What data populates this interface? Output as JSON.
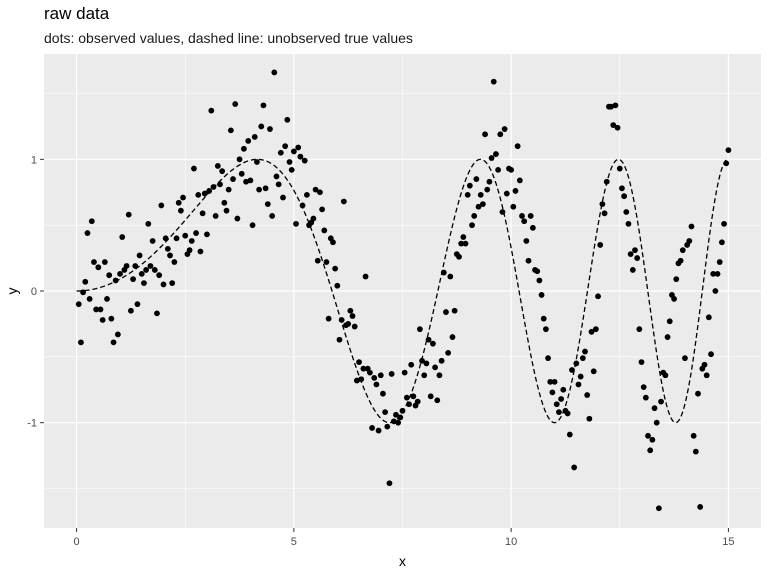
{
  "chart_data": {
    "type": "scatter",
    "title": "raw data",
    "subtitle": "dots: observed values, dashed line: unobserved true values",
    "xlabel": "x",
    "ylabel": "y",
    "xlim": [
      -0.75,
      15.75
    ],
    "ylim": [
      -1.8,
      1.8
    ],
    "x_ticks": [
      "0",
      "5",
      "10",
      "15"
    ],
    "x_tick_values": [
      0,
      5,
      10,
      15
    ],
    "y_ticks": [
      "-1",
      "0",
      "1"
    ],
    "y_tick_values": [
      -1,
      0,
      1
    ],
    "grid": true,
    "legend": "none",
    "colors": {
      "panel": "#ebebeb",
      "grid": "#ffffff",
      "points": "#000000",
      "line": "#000000"
    },
    "true_curve": {
      "style": "dashed",
      "x_range": [
        0,
        15
      ],
      "expression": "sin(x^2 / 11)"
    },
    "points": [
      [
        0.05,
        -0.1
      ],
      [
        0.1,
        -0.39
      ],
      [
        0.15,
        -0.01
      ],
      [
        0.2,
        0.07
      ],
      [
        0.25,
        0.44
      ],
      [
        0.3,
        -0.06
      ],
      [
        0.35,
        0.53
      ],
      [
        0.4,
        0.22
      ],
      [
        0.45,
        -0.14
      ],
      [
        0.5,
        0.18
      ],
      [
        0.55,
        -0.14
      ],
      [
        0.6,
        -0.22
      ],
      [
        0.65,
        0.22
      ],
      [
        0.7,
        -0.06
      ],
      [
        0.75,
        0.12
      ],
      [
        0.8,
        -0.21
      ],
      [
        0.85,
        -0.39
      ],
      [
        0.9,
        0.08
      ],
      [
        0.95,
        -0.33
      ],
      [
        1.0,
        0.13
      ],
      [
        1.05,
        0.41
      ],
      [
        1.1,
        0.16
      ],
      [
        1.15,
        0.19
      ],
      [
        1.2,
        0.58
      ],
      [
        1.25,
        -0.15
      ],
      [
        1.3,
        0.09
      ],
      [
        1.35,
        0.19
      ],
      [
        1.4,
        -0.1
      ],
      [
        1.45,
        0.27
      ],
      [
        1.5,
        0.13
      ],
      [
        1.55,
        0.06
      ],
      [
        1.6,
        0.16
      ],
      [
        1.65,
        0.51
      ],
      [
        1.7,
        0.19
      ],
      [
        1.75,
        0.38
      ],
      [
        1.8,
        0.16
      ],
      [
        1.85,
        -0.17
      ],
      [
        1.9,
        0.12
      ],
      [
        1.95,
        0.65
      ],
      [
        2.0,
        0.05
      ],
      [
        2.05,
        0.4
      ],
      [
        2.1,
        0.32
      ],
      [
        2.15,
        0.27
      ],
      [
        2.2,
        0.06
      ],
      [
        2.25,
        0.22
      ],
      [
        2.3,
        0.4
      ],
      [
        2.35,
        0.67
      ],
      [
        2.4,
        0.61
      ],
      [
        2.45,
        0.71
      ],
      [
        2.5,
        0.42
      ],
      [
        2.55,
        0.28
      ],
      [
        2.6,
        0.31
      ],
      [
        2.65,
        0.38
      ],
      [
        2.7,
        0.93
      ],
      [
        2.75,
        0.44
      ],
      [
        2.8,
        0.73
      ],
      [
        2.85,
        0.3
      ],
      [
        2.9,
        0.59
      ],
      [
        2.95,
        0.74
      ],
      [
        3.0,
        0.43
      ],
      [
        3.05,
        0.76
      ],
      [
        3.1,
        1.37
      ],
      [
        3.15,
        0.79
      ],
      [
        3.2,
        0.57
      ],
      [
        3.25,
        0.95
      ],
      [
        3.3,
        0.81
      ],
      [
        3.35,
        0.91
      ],
      [
        3.4,
        0.67
      ],
      [
        3.45,
        0.61
      ],
      [
        3.5,
        0.77
      ],
      [
        3.55,
        1.22
      ],
      [
        3.6,
        0.85
      ],
      [
        3.65,
        1.42
      ],
      [
        3.7,
        0.55
      ],
      [
        3.75,
        1.0
      ],
      [
        3.8,
        0.89
      ],
      [
        3.85,
        1.08
      ],
      [
        3.9,
        0.83
      ],
      [
        3.95,
        1.14
      ],
      [
        4.0,
        0.84
      ],
      [
        4.05,
        0.5
      ],
      [
        4.1,
        1.17
      ],
      [
        4.15,
        0.98
      ],
      [
        4.2,
        0.77
      ],
      [
        4.25,
        1.25
      ],
      [
        4.3,
        1.41
      ],
      [
        4.35,
        0.78
      ],
      [
        4.4,
        0.66
      ],
      [
        4.45,
        1.23
      ],
      [
        4.5,
        0.57
      ],
      [
        4.55,
        1.66
      ],
      [
        4.6,
        0.87
      ],
      [
        4.65,
        0.81
      ],
      [
        4.7,
        1.05
      ],
      [
        4.75,
        0.71
      ],
      [
        4.8,
        1.1
      ],
      [
        4.85,
        1.3
      ],
      [
        4.9,
        0.98
      ],
      [
        4.95,
        0.92
      ],
      [
        5.0,
        1.06
      ],
      [
        5.05,
        0.51
      ],
      [
        5.1,
        1.09
      ],
      [
        5.15,
        1.02
      ],
      [
        5.2,
        0.65
      ],
      [
        5.25,
        0.99
      ],
      [
        5.3,
        0.73
      ],
      [
        5.35,
        0.5
      ],
      [
        5.4,
        0.52
      ],
      [
        5.45,
        0.55
      ],
      [
        5.5,
        0.77
      ],
      [
        5.55,
        0.23
      ],
      [
        5.6,
        0.75
      ],
      [
        5.65,
        0.62
      ],
      [
        5.7,
        0.46
      ],
      [
        5.75,
        0.22
      ],
      [
        5.8,
        -0.21
      ],
      [
        5.85,
        0.4
      ],
      [
        5.9,
        0.37
      ],
      [
        5.95,
        0.17
      ],
      [
        6.0,
        0.04
      ],
      [
        6.05,
        -0.37
      ],
      [
        6.1,
        -0.22
      ],
      [
        6.15,
        0.68
      ],
      [
        6.2,
        -0.26
      ],
      [
        6.25,
        -0.25
      ],
      [
        6.3,
        -0.15
      ],
      [
        6.35,
        -0.19
      ],
      [
        6.4,
        -0.27
      ],
      [
        6.45,
        -0.68
      ],
      [
        6.5,
        -0.54
      ],
      [
        6.55,
        -0.67
      ],
      [
        6.6,
        -0.59
      ],
      [
        6.65,
        0.11
      ],
      [
        6.7,
        -0.59
      ],
      [
        6.75,
        -0.62
      ],
      [
        6.8,
        -1.04
      ],
      [
        6.85,
        -0.66
      ],
      [
        6.9,
        -0.71
      ],
      [
        6.95,
        -1.06
      ],
      [
        7.0,
        -0.64
      ],
      [
        7.05,
        -0.78
      ],
      [
        7.1,
        -0.92
      ],
      [
        7.15,
        -1.03
      ],
      [
        7.2,
        -1.46
      ],
      [
        7.25,
        -0.63
      ],
      [
        7.3,
        -0.99
      ],
      [
        7.35,
        -0.94
      ],
      [
        7.4,
        -1.0
      ],
      [
        7.45,
        -0.96
      ],
      [
        7.5,
        -0.91
      ],
      [
        7.55,
        -0.62
      ],
      [
        7.6,
        -0.81
      ],
      [
        7.65,
        -0.86
      ],
      [
        7.7,
        -0.56
      ],
      [
        7.75,
        -0.8
      ],
      [
        7.8,
        -0.87
      ],
      [
        7.85,
        -0.84
      ],
      [
        7.9,
        -0.29
      ],
      [
        7.95,
        -0.53
      ],
      [
        8.0,
        -0.64
      ],
      [
        8.05,
        -0.55
      ],
      [
        8.1,
        -0.37
      ],
      [
        8.15,
        -0.8
      ],
      [
        8.2,
        -0.4
      ],
      [
        8.25,
        -0.58
      ],
      [
        8.3,
        -0.83
      ],
      [
        8.35,
        -0.64
      ],
      [
        8.4,
        -0.53
      ],
      [
        8.45,
        0.14
      ],
      [
        8.5,
        -0.16
      ],
      [
        8.55,
        -0.47
      ],
      [
        8.6,
        0.11
      ],
      [
        8.65,
        -0.35
      ],
      [
        8.7,
        -0.15
      ],
      [
        8.75,
        0.28
      ],
      [
        8.8,
        0.26
      ],
      [
        8.85,
        0.36
      ],
      [
        8.9,
        0.41
      ],
      [
        8.95,
        0.36
      ],
      [
        9.0,
        0.73
      ],
      [
        9.05,
        0.8
      ],
      [
        9.1,
        0.5
      ],
      [
        9.15,
        0.57
      ],
      [
        9.2,
        0.85
      ],
      [
        9.25,
        0.64
      ],
      [
        9.3,
        0.73
      ],
      [
        9.35,
        0.66
      ],
      [
        9.4,
        1.19
      ],
      [
        9.45,
        0.77
      ],
      [
        9.5,
        0.83
      ],
      [
        9.55,
        1.01
      ],
      [
        9.6,
        1.59
      ],
      [
        9.65,
        1.04
      ],
      [
        9.7,
        0.92
      ],
      [
        9.75,
        1.19
      ],
      [
        9.8,
        0.6
      ],
      [
        9.85,
        1.23
      ],
      [
        9.9,
        0.74
      ],
      [
        9.95,
        0.93
      ],
      [
        10.0,
        0.92
      ],
      [
        10.05,
        0.64
      ],
      [
        10.1,
        0.76
      ],
      [
        10.15,
        1.1
      ],
      [
        10.2,
        0.84
      ],
      [
        10.25,
        0.57
      ],
      [
        10.3,
        0.53
      ],
      [
        10.35,
        0.38
      ],
      [
        10.4,
        0.23
      ],
      [
        10.45,
        0.57
      ],
      [
        10.5,
        0.48
      ],
      [
        10.55,
        0.16
      ],
      [
        10.6,
        0.15
      ],
      [
        10.65,
        0.08
      ],
      [
        10.7,
        -0.03
      ],
      [
        10.75,
        -0.21
      ],
      [
        10.8,
        -0.29
      ],
      [
        10.85,
        -0.51
      ],
      [
        10.9,
        -0.69
      ],
      [
        10.95,
        -0.77
      ],
      [
        11.0,
        -0.69
      ],
      [
        11.05,
        -0.86
      ],
      [
        11.1,
        -0.92
      ],
      [
        11.15,
        -0.82
      ],
      [
        11.2,
        -0.75
      ],
      [
        11.25,
        -0.91
      ],
      [
        11.3,
        -0.93
      ],
      [
        11.35,
        -1.09
      ],
      [
        11.4,
        -0.6
      ],
      [
        11.45,
        -1.34
      ],
      [
        11.5,
        -0.55
      ],
      [
        11.55,
        -0.71
      ],
      [
        11.6,
        -0.65
      ],
      [
        11.65,
        -0.51
      ],
      [
        11.7,
        -0.46
      ],
      [
        11.75,
        -0.79
      ],
      [
        11.8,
        -0.97
      ],
      [
        11.85,
        -0.31
      ],
      [
        11.9,
        -0.61
      ],
      [
        11.95,
        -0.29
      ],
      [
        12.0,
        -0.04
      ],
      [
        12.05,
        0.35
      ],
      [
        12.1,
        0.66
      ],
      [
        12.15,
        0.59
      ],
      [
        12.2,
        0.83
      ],
      [
        12.25,
        1.4
      ],
      [
        12.3,
        1.4
      ],
      [
        12.35,
        1.26
      ],
      [
        12.4,
        1.41
      ],
      [
        12.45,
        1.24
      ],
      [
        12.5,
        0.93
      ],
      [
        12.55,
        0.78
      ],
      [
        12.6,
        0.72
      ],
      [
        12.65,
        0.6
      ],
      [
        12.7,
        0.51
      ],
      [
        12.75,
        0.28
      ],
      [
        12.8,
        0.16
      ],
      [
        12.85,
        0.31
      ],
      [
        12.9,
        0.25
      ],
      [
        12.95,
        -0.29
      ],
      [
        13.0,
        -0.54
      ],
      [
        13.05,
        -0.73
      ],
      [
        13.1,
        -0.81
      ],
      [
        13.15,
        -1.1
      ],
      [
        13.2,
        -1.21
      ],
      [
        13.25,
        -1.13
      ],
      [
        13.3,
        -0.89
      ],
      [
        13.35,
        -1.0
      ],
      [
        13.4,
        -1.65
      ],
      [
        13.45,
        -0.84
      ],
      [
        13.5,
        -0.62
      ],
      [
        13.55,
        -0.64
      ],
      [
        13.6,
        -0.35
      ],
      [
        13.65,
        -0.23
      ],
      [
        13.7,
        -0.03
      ],
      [
        13.75,
        -0.06
      ],
      [
        13.8,
        0.09
      ],
      [
        13.85,
        0.21
      ],
      [
        13.9,
        0.23
      ],
      [
        13.95,
        0.31
      ],
      [
        14.0,
        -0.51
      ],
      [
        14.05,
        0.35
      ],
      [
        14.1,
        0.38
      ],
      [
        14.15,
        0.49
      ],
      [
        14.2,
        -1.1
      ],
      [
        14.25,
        -1.22
      ],
      [
        14.3,
        -0.78
      ],
      [
        14.35,
        -1.64
      ],
      [
        14.4,
        -0.59
      ],
      [
        14.45,
        -0.56
      ],
      [
        14.5,
        -0.64
      ],
      [
        14.55,
        -0.2
      ],
      [
        14.6,
        -0.48
      ],
      [
        14.65,
        0.13
      ],
      [
        14.7,
        0.0
      ],
      [
        14.75,
        0.13
      ],
      [
        14.8,
        0.22
      ],
      [
        14.85,
        0.37
      ],
      [
        14.9,
        0.51
      ],
      [
        14.95,
        0.97
      ],
      [
        15.0,
        1.07
      ]
    ]
  }
}
